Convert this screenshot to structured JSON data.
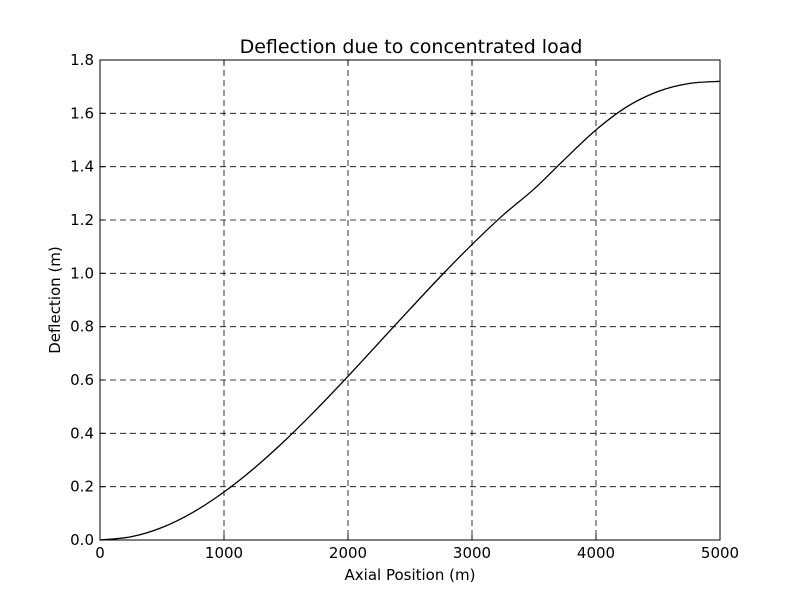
{
  "chart_data": {
    "type": "line",
    "title": "Deflection due to concentrated load",
    "xlabel": "Axial Position (m)",
    "ylabel": "Deflection (m)",
    "xlim": [
      0,
      5000
    ],
    "ylim": [
      0,
      1.8
    ],
    "grid": true,
    "x_ticks": [
      0,
      1000,
      2000,
      3000,
      4000,
      5000
    ],
    "x_tick_labels": [
      "0",
      "1000",
      "2000",
      "3000",
      "4000",
      "5000"
    ],
    "y_ticks": [
      0.0,
      0.2,
      0.4,
      0.6,
      0.8,
      1.0,
      1.2,
      1.4,
      1.6,
      1.8
    ],
    "y_tick_labels": [
      "0.0",
      "0.2",
      "0.4",
      "0.6",
      "0.8",
      "1.0",
      "1.2",
      "1.4",
      "1.6",
      "1.8"
    ],
    "series": [
      {
        "name": "deflection",
        "color": "#000000",
        "x": [
          0,
          250,
          500,
          750,
          1000,
          1250,
          1500,
          1750,
          2000,
          2250,
          2500,
          2750,
          3000,
          3250,
          3500,
          3750,
          4000,
          4250,
          4500,
          4750,
          5000
        ],
        "y": [
          0.0,
          0.012,
          0.047,
          0.104,
          0.18,
          0.272,
          0.377,
          0.492,
          0.614,
          0.74,
          0.866,
          0.99,
          1.108,
          1.218,
          1.316,
          1.429,
          1.538,
          1.625,
          1.682,
          1.712,
          1.72
        ]
      }
    ]
  }
}
